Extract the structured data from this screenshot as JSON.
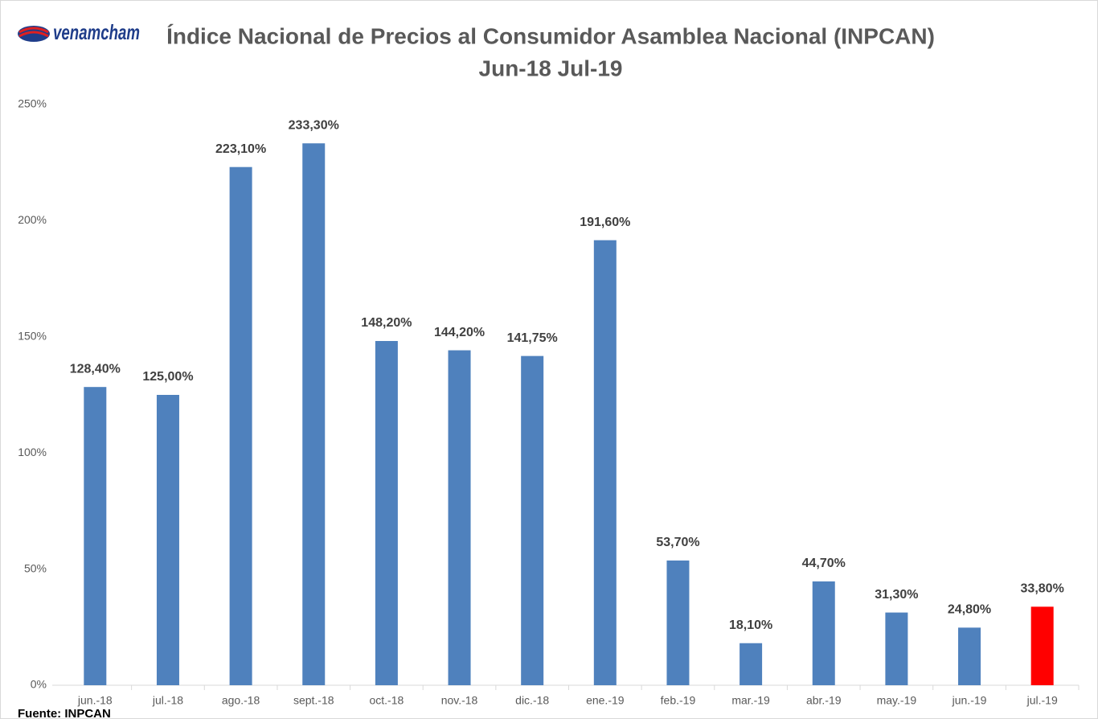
{
  "logo": "venamcham",
  "chart_data": {
    "type": "bar",
    "title": "Índice Nacional de Precios al Consumidor Asamblea Nacional (INPCAN)",
    "subtitle": "Jun-18 Jul-19",
    "categories": [
      "jun.-18",
      "jul.-18",
      "ago.-18",
      "sept.-18",
      "oct.-18",
      "nov.-18",
      "dic.-18",
      "ene.-19",
      "feb.-19",
      "mar.-19",
      "abr.-19",
      "may.-19",
      "jun.-19",
      "jul.-19"
    ],
    "values": [
      128.4,
      125,
      223.1,
      233.3,
      148.2,
      144.2,
      141.75,
      191.6,
      53.7,
      18.1,
      44.7,
      31.3,
      24.8,
      33.8
    ],
    "value_labels": [
      "128,40%",
      "125,00%",
      "223,10%",
      "233,30%",
      "148,20%",
      "144,20%",
      "141,75%",
      "191,60%",
      "53,70%",
      "18,10%",
      "44,70%",
      "31,30%",
      "24,80%",
      "33,80%"
    ],
    "colors": [
      "#4f81bd",
      "#4f81bd",
      "#4f81bd",
      "#4f81bd",
      "#4f81bd",
      "#4f81bd",
      "#4f81bd",
      "#4f81bd",
      "#4f81bd",
      "#4f81bd",
      "#4f81bd",
      "#4f81bd",
      "#4f81bd",
      "#ff0000"
    ],
    "ylim": [
      0,
      250
    ],
    "yticks": [
      {
        "value": 0,
        "label": "0%"
      },
      {
        "value": 50,
        "label": "50%"
      },
      {
        "value": 100,
        "label": "100%"
      },
      {
        "value": 150,
        "label": "150%"
      },
      {
        "value": 200,
        "label": "200%"
      },
      {
        "value": 250,
        "label": "250%"
      }
    ],
    "source": "Fuente: INPCAN"
  }
}
